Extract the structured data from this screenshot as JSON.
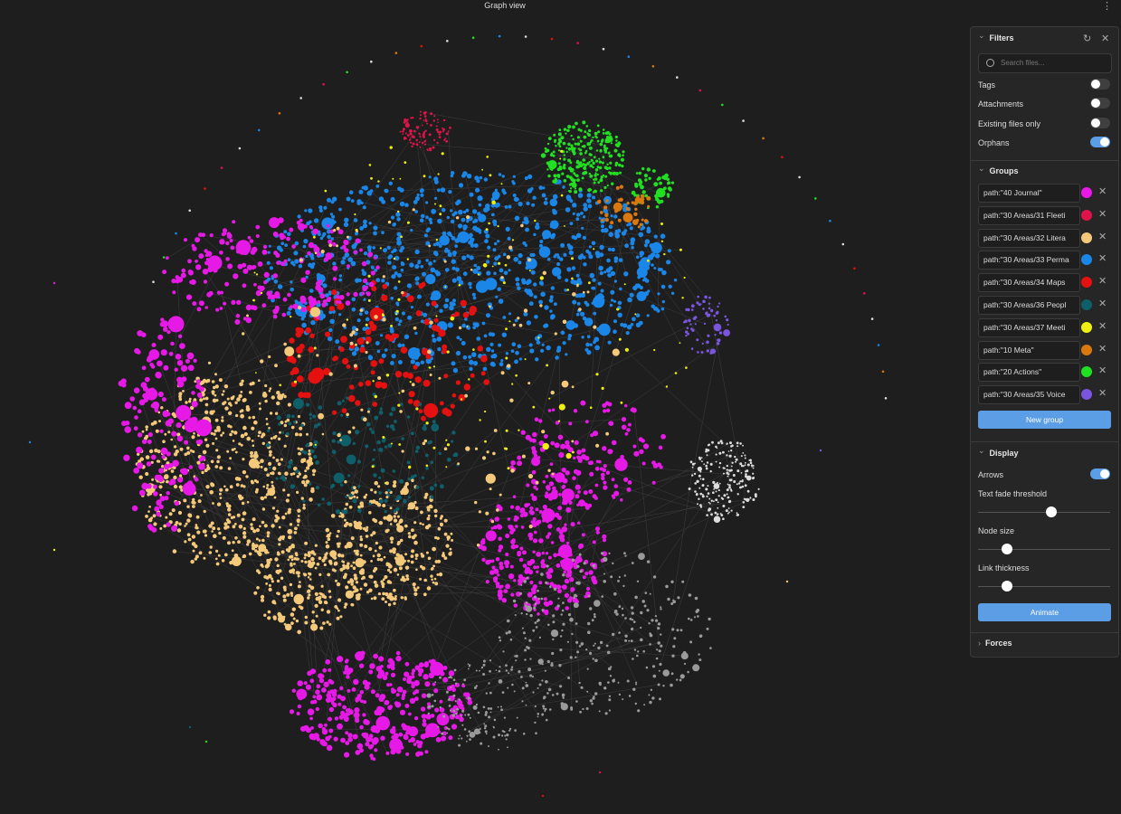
{
  "header": {
    "title": "Graph view"
  },
  "filters": {
    "title": "Filters",
    "search_placeholder": "Search files...",
    "toggles": [
      {
        "label": "Tags",
        "on": false
      },
      {
        "label": "Attachments",
        "on": false
      },
      {
        "label": "Existing files only",
        "on": false
      },
      {
        "label": "Orphans",
        "on": true
      }
    ]
  },
  "groups": {
    "title": "Groups",
    "items": [
      {
        "query": "path:\"40 Journal\"",
        "color": "#e619e6"
      },
      {
        "query": "path:\"30 Areas/31 Fleeti",
        "color": "#e0134a"
      },
      {
        "query": "path:\"30 Areas/32 Litera",
        "color": "#f5c97a"
      },
      {
        "query": "path:\"30 Areas/33 Perma",
        "color": "#1a86e8"
      },
      {
        "query": "path:\"30 Areas/34 Maps",
        "color": "#e51010"
      },
      {
        "query": "path:\"30 Areas/36 Peopl",
        "color": "#0f5f6a"
      },
      {
        "query": "path:\"30 Areas/37 Meeti",
        "color": "#f0f010"
      },
      {
        "query": "path:\"10 Meta\"",
        "color": "#d9780f"
      },
      {
        "query": "path:\"20 Actions\"",
        "color": "#21e021"
      },
      {
        "query": "path:\"30 Areas/35 Voice",
        "color": "#7a55e0"
      }
    ],
    "new_group": "New group"
  },
  "display": {
    "title": "Display",
    "arrows": {
      "label": "Arrows",
      "on": true
    },
    "sliders": [
      "Text fade threshold",
      "Node size",
      "Link thickness"
    ],
    "animate": "Animate"
  },
  "forces": {
    "title": "Forces"
  }
}
